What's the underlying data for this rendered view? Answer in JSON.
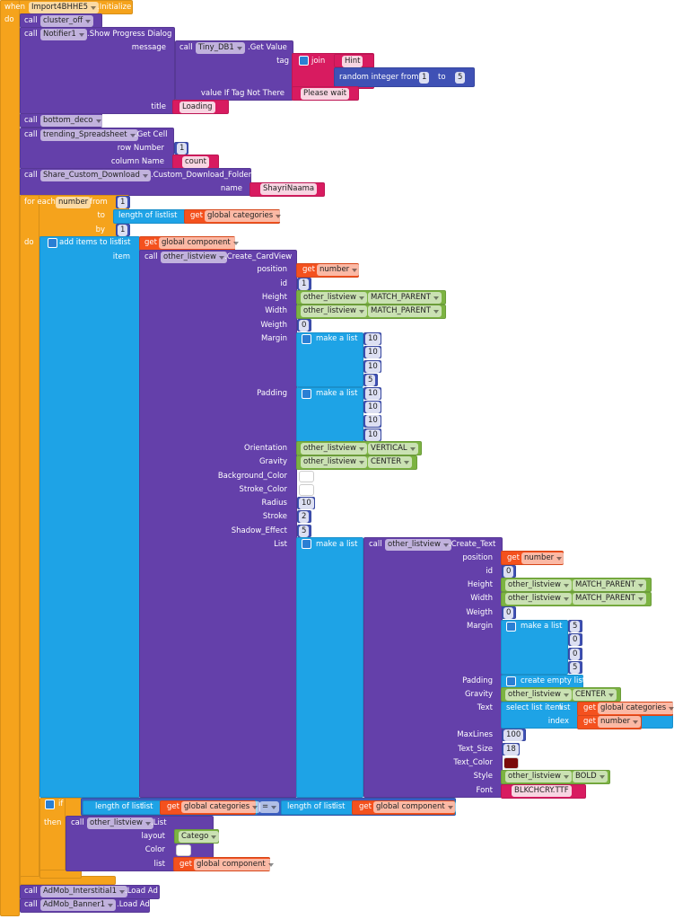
{
  "rows": [
    [
      "when",
      "Import4BHHE5",
      ".Initialize"
    ],
    [
      "do"
    ],
    [
      "call",
      "cluster_off"
    ],
    [
      "call",
      "Notifier1",
      ".Show Progress Dialog"
    ],
    [
      "message",
      "call",
      "Tiny_DB1",
      ".Get Value"
    ],
    [
      "tag",
      "join",
      "Hint"
    ],
    [
      "random integer from",
      1,
      "to",
      5
    ],
    [
      "value If Tag Not There",
      "Please wait"
    ],
    [
      "title",
      "Loading"
    ],
    [
      "call",
      "bottom_deco"
    ],
    [
      "call",
      "trending_Spreadsheet",
      ".Get Cell"
    ],
    [
      "row Number",
      1
    ],
    [
      "column Name",
      "count"
    ],
    [
      "call",
      "Share_Custom_Download",
      ".Custom_Download_Folder"
    ],
    [
      "name",
      "ShayriNaama"
    ],
    [
      "for each",
      "number",
      "from",
      1
    ],
    [
      "to",
      "length of list",
      "list",
      "get",
      "global categories"
    ],
    [
      "by",
      1
    ],
    [
      "do",
      "add items to list",
      "list",
      "get",
      "global component"
    ],
    [
      "item",
      "call",
      "other_listview",
      ".Create_CardView"
    ],
    [
      "position",
      "get",
      "number"
    ],
    [
      "id",
      1
    ],
    [
      "Height",
      "other_listview",
      "MATCH_PARENT"
    ],
    [
      "Width",
      "other_listview",
      "MATCH_PARENT"
    ],
    [
      "Weigth",
      0
    ],
    [
      "Margin",
      "make a list",
      10
    ],
    [
      10
    ],
    [
      10
    ],
    [
      5
    ],
    [
      "Padding",
      "make a list",
      10
    ],
    [
      10
    ],
    [
      10
    ],
    [
      10
    ],
    [
      "Orientation",
      "other_listview",
      "VERTICAL"
    ],
    [
      "Gravity",
      "other_listview",
      "CENTER"
    ],
    [
      "Background_Color"
    ],
    [
      "Stroke_Color"
    ],
    [
      "Radius",
      10
    ],
    [
      "Stroke",
      2
    ],
    [
      "Shadow_Effect",
      5
    ],
    [
      "List",
      "make a list",
      "call",
      "other_listview",
      ".Create_Text"
    ],
    [
      "position",
      "get",
      "number"
    ],
    [
      "id",
      0
    ],
    [
      "Height",
      "other_listview",
      "MATCH_PARENT"
    ],
    [
      "Width",
      "other_listview",
      "MATCH_PARENT"
    ],
    [
      "Weigth",
      0
    ],
    [
      "Margin",
      "make a list",
      5
    ],
    [
      0
    ],
    [
      0
    ],
    [
      5
    ],
    [
      "Padding",
      "create empty list"
    ],
    [
      "Gravity",
      "other_listview",
      "CENTER"
    ],
    [
      "Text",
      "select list item",
      "list",
      "get",
      "global categories"
    ],
    [
      "index",
      "get",
      "number"
    ],
    [
      "MaxLines",
      100
    ],
    [
      "Text_Size",
      18
    ],
    [
      "Text_Color"
    ],
    [
      "Style",
      "other_listview",
      "BOLD"
    ],
    [
      "Font",
      "BLKCHCRY.TTF"
    ],
    [
      "if",
      "length of list",
      "list",
      "get",
      "global categories",
      "=",
      "length of list",
      "list",
      "get",
      "global component"
    ],
    [
      "then",
      "call",
      "other_listview",
      ".List"
    ],
    [
      "layout",
      "Catego"
    ],
    [
      "Color"
    ],
    [
      "list",
      "get",
      "global component"
    ],
    [
      "call",
      "AdMob_Interstitial1",
      ".Load Ad"
    ],
    [
      "call",
      "AdMob_Banner1",
      ".Load Ad"
    ]
  ]
}
